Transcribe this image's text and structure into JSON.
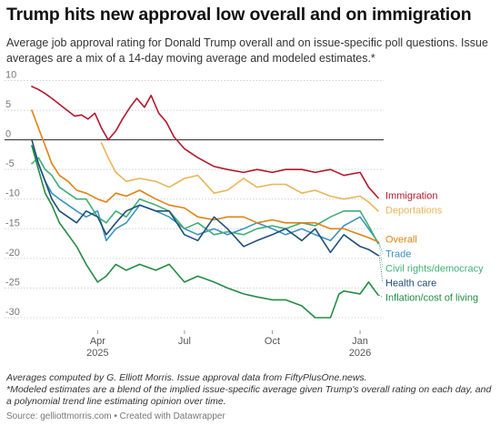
{
  "title": "Trump hits new approval low overall and on immigration",
  "subtitle": "Average job approval rating for Donald Trump overall and on issue-specific poll questions. Issue averages are a mix of a 14-day moving average and modeled estimates.*",
  "notes": [
    "Averages computed by G. Elliott Morris. Issue approval data from FiftyPlusOne.news.",
    "*Modeled estimates are a blend of the implied issue-specific average given Trump's overall rating on each day, and a polynomial trend line estimating opinion over time."
  ],
  "source": "Source: gelliottmorris.com • Created with Datawrapper",
  "chart_data": {
    "type": "line",
    "title": "Trump hits new approval low overall and on immigration",
    "xlabel": "",
    "ylabel": "",
    "ylim": [
      -32,
      11
    ],
    "y_ticks": [
      10,
      5,
      0,
      -5,
      -10,
      -15,
      -20,
      -25,
      -30
    ],
    "x_start": "2025-01-22",
    "x_end": "2026-01-20",
    "x_ticks": [
      {
        "date": "2025-04-01",
        "label": "Apr",
        "label2": "2025"
      },
      {
        "date": "2025-07-01",
        "label": "Jul",
        "label2": ""
      },
      {
        "date": "2025-10-01",
        "label": "Oct",
        "label2": ""
      },
      {
        "date": "2026-01-01",
        "label": "Jan",
        "label2": "2026"
      }
    ],
    "zero_line": true,
    "grid": "horizontal-dashed",
    "legend": "direct-labels-right",
    "series": [
      {
        "name": "Immigration",
        "color": "#b2182b",
        "x": [
          "2025-01-22",
          "2025-01-29",
          "2025-02-05",
          "2025-02-12",
          "2025-02-20",
          "2025-02-28",
          "2025-03-08",
          "2025-03-15",
          "2025-03-22",
          "2025-03-29",
          "2025-04-05",
          "2025-04-12",
          "2025-04-20",
          "2025-04-27",
          "2025-05-05",
          "2025-05-12",
          "2025-05-20",
          "2025-05-27",
          "2025-06-04",
          "2025-06-12",
          "2025-06-20",
          "2025-07-01",
          "2025-07-15",
          "2025-08-01",
          "2025-08-15",
          "2025-09-01",
          "2025-09-15",
          "2025-10-01",
          "2025-10-15",
          "2025-11-01",
          "2025-11-15",
          "2025-12-01",
          "2025-12-15",
          "2026-01-01",
          "2026-01-10",
          "2026-01-20"
        ],
        "values": [
          9,
          8.5,
          7.8,
          7,
          6,
          5,
          4,
          4.2,
          3.5,
          4.5,
          2,
          0,
          1.5,
          3.5,
          5.5,
          7,
          5.5,
          7.5,
          4.5,
          3,
          0.5,
          -1.5,
          -3,
          -4.5,
          -5,
          -5.5,
          -5,
          -5.5,
          -5,
          -5,
          -5.5,
          -5,
          -6,
          -5.5,
          -8,
          -9.8
        ]
      },
      {
        "name": "Deportations",
        "color": "#e8b55a",
        "x": [
          "2025-04-05",
          "2025-04-12",
          "2025-04-20",
          "2025-05-01",
          "2025-05-15",
          "2025-06-01",
          "2025-06-15",
          "2025-07-01",
          "2025-07-15",
          "2025-08-01",
          "2025-08-15",
          "2025-09-01",
          "2025-09-15",
          "2025-10-01",
          "2025-10-15",
          "2025-11-01",
          "2025-11-15",
          "2025-12-01",
          "2025-12-15",
          "2026-01-01",
          "2026-01-10",
          "2026-01-20"
        ],
        "values": [
          -0.5,
          -3,
          -5.5,
          -7,
          -6.5,
          -7,
          -8,
          -6.5,
          -6,
          -9,
          -8.5,
          -6.5,
          -8,
          -7.5,
          -7.5,
          -9,
          -8.5,
          -9.5,
          -10,
          -9.5,
          -10.5,
          -12
        ]
      },
      {
        "name": "Trade",
        "color": "#3a93c3",
        "x": [
          "2025-01-22",
          "2025-01-29",
          "2025-02-05",
          "2025-02-12",
          "2025-02-20",
          "2025-03-01",
          "2025-03-10",
          "2025-03-20",
          "2025-04-01",
          "2025-04-10",
          "2025-04-20",
          "2025-05-01",
          "2025-05-15",
          "2025-06-01",
          "2025-06-15",
          "2025-07-01",
          "2025-07-15",
          "2025-08-01",
          "2025-08-15",
          "2025-09-01",
          "2025-09-15",
          "2025-10-01",
          "2025-10-15",
          "2025-11-01",
          "2025-11-15",
          "2025-12-01",
          "2025-12-15",
          "2026-01-01",
          "2026-01-10",
          "2026-01-20"
        ],
        "values": [
          -1,
          -4,
          -7,
          -9,
          -10,
          -11,
          -12,
          -13,
          -12,
          -17,
          -15,
          -14,
          -11,
          -12,
          -13,
          -15,
          -16,
          -15,
          -16,
          -15,
          -14,
          -15,
          -16,
          -15,
          -16,
          -17,
          -14.5,
          -13,
          -15,
          -17.3
        ]
      },
      {
        "name": "Civil rights/democracy",
        "color": "#41ae76",
        "x": [
          "2025-01-22",
          "2025-01-29",
          "2025-02-05",
          "2025-02-12",
          "2025-02-20",
          "2025-03-01",
          "2025-03-10",
          "2025-03-20",
          "2025-04-01",
          "2025-04-10",
          "2025-04-20",
          "2025-05-01",
          "2025-05-15",
          "2025-06-01",
          "2025-06-15",
          "2025-07-01",
          "2025-07-15",
          "2025-08-01",
          "2025-08-15",
          "2025-09-01",
          "2025-09-15",
          "2025-10-01",
          "2025-10-15",
          "2025-11-01",
          "2025-11-15",
          "2025-12-01",
          "2025-12-15",
          "2026-01-01",
          "2026-01-10",
          "2026-01-20"
        ],
        "values": [
          -4,
          -3,
          -5,
          -6,
          -8,
          -9,
          -10,
          -10,
          -13,
          -14,
          -12,
          -13,
          -10,
          -11,
          -12,
          -15,
          -14,
          -16,
          -15.5,
          -16,
          -15,
          -14.5,
          -15,
          -14,
          -14.5,
          -13,
          -12,
          -12,
          -14.5,
          -17.5
        ]
      },
      {
        "name": "Overall",
        "color": "#e08214",
        "x": [
          "2025-01-22",
          "2025-01-29",
          "2025-02-05",
          "2025-02-12",
          "2025-02-20",
          "2025-03-01",
          "2025-03-10",
          "2025-03-20",
          "2025-04-01",
          "2025-04-10",
          "2025-04-20",
          "2025-05-01",
          "2025-05-15",
          "2025-06-01",
          "2025-06-15",
          "2025-07-01",
          "2025-07-15",
          "2025-08-01",
          "2025-08-15",
          "2025-09-01",
          "2025-09-15",
          "2025-10-01",
          "2025-10-15",
          "2025-11-01",
          "2025-11-15",
          "2025-12-01",
          "2025-12-15",
          "2026-01-01",
          "2026-01-10",
          "2026-01-20"
        ],
        "values": [
          5,
          2,
          -1,
          -4,
          -6,
          -7,
          -8.5,
          -9,
          -10,
          -10.5,
          -9,
          -9.5,
          -8.5,
          -10,
          -11,
          -11.5,
          -13,
          -13.5,
          -13,
          -13,
          -14,
          -13.5,
          -14,
          -14,
          -14,
          -15,
          -15,
          -16,
          -16.5,
          -17.2
        ]
      },
      {
        "name": "Health care",
        "color": "#1f4e79",
        "x": [
          "2025-01-22",
          "2025-01-29",
          "2025-02-05",
          "2025-02-12",
          "2025-02-20",
          "2025-03-01",
          "2025-03-10",
          "2025-03-20",
          "2025-04-01",
          "2025-04-10",
          "2025-04-20",
          "2025-05-01",
          "2025-05-15",
          "2025-06-01",
          "2025-06-15",
          "2025-07-01",
          "2025-07-15",
          "2025-08-01",
          "2025-08-15",
          "2025-09-01",
          "2025-09-15",
          "2025-10-01",
          "2025-10-15",
          "2025-11-01",
          "2025-11-15",
          "2025-12-01",
          "2025-12-15",
          "2026-01-01",
          "2026-01-10",
          "2026-01-20"
        ],
        "values": [
          0,
          -4,
          -7,
          -10,
          -12,
          -13,
          -14,
          -12,
          -13,
          -16,
          -14,
          -12,
          -11,
          -12,
          -12,
          -16,
          -17,
          -13,
          -15,
          -18,
          -17,
          -16,
          -15,
          -17,
          -15,
          -19,
          -16,
          -18,
          -18.5,
          -19.5
        ]
      },
      {
        "name": "Inflation/cost of living",
        "color": "#238b45",
        "x": [
          "2025-01-22",
          "2025-01-29",
          "2025-02-05",
          "2025-02-12",
          "2025-02-20",
          "2025-03-01",
          "2025-03-10",
          "2025-03-20",
          "2025-04-01",
          "2025-04-10",
          "2025-04-20",
          "2025-05-01",
          "2025-05-15",
          "2025-06-01",
          "2025-06-15",
          "2025-07-01",
          "2025-07-15",
          "2025-08-01",
          "2025-08-15",
          "2025-09-01",
          "2025-09-15",
          "2025-10-01",
          "2025-10-15",
          "2025-11-01",
          "2025-11-15",
          "2025-12-01",
          "2025-12-10",
          "2025-12-15",
          "2026-01-01",
          "2026-01-10",
          "2026-01-20"
        ],
        "values": [
          -1,
          -5,
          -9,
          -11,
          -14,
          -16,
          -18,
          -21,
          -24,
          -23,
          -21,
          -22,
          -21,
          -22,
          -21,
          -24,
          -23,
          -24,
          -25,
          -26,
          -26.5,
          -27,
          -27,
          -28,
          -30,
          -30,
          -26,
          -25.5,
          -26,
          -24,
          -26.2
        ]
      }
    ]
  }
}
